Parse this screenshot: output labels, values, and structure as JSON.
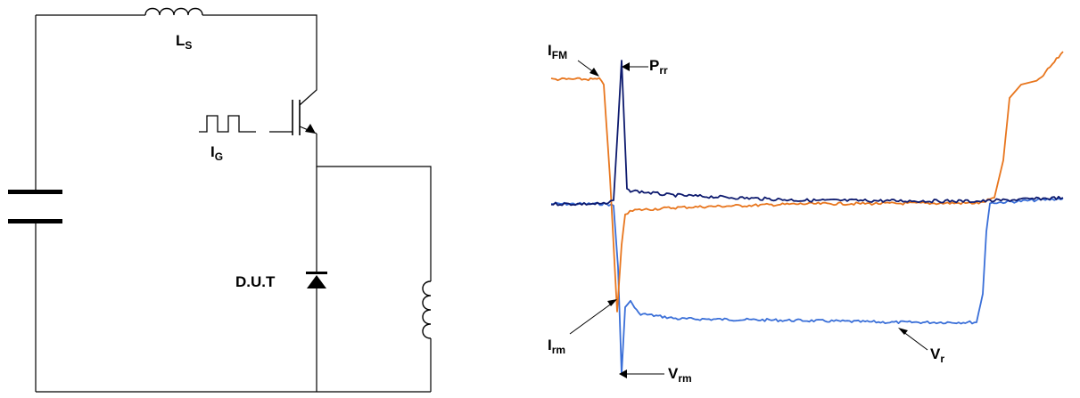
{
  "circuit": {
    "inductor_label": {
      "main": "L",
      "sub": "S"
    },
    "gate_label": {
      "main": "I",
      "sub": "G"
    },
    "dut_label": "D.U.T"
  },
  "waveforms": {
    "ifm_label": {
      "main": "I",
      "sub": "FM"
    },
    "prr_label": {
      "main": "P",
      "sub": "rr"
    },
    "irm_label": {
      "main": "I",
      "sub": "rm"
    },
    "vrm_label": {
      "main": "V",
      "sub": "rm"
    },
    "vr_label": {
      "main": "V",
      "sub": "r"
    },
    "colors": {
      "current": "#e8761e",
      "voltage": "#3a6fd8",
      "power": "#0d1a6e",
      "wire": "#000000"
    }
  }
}
